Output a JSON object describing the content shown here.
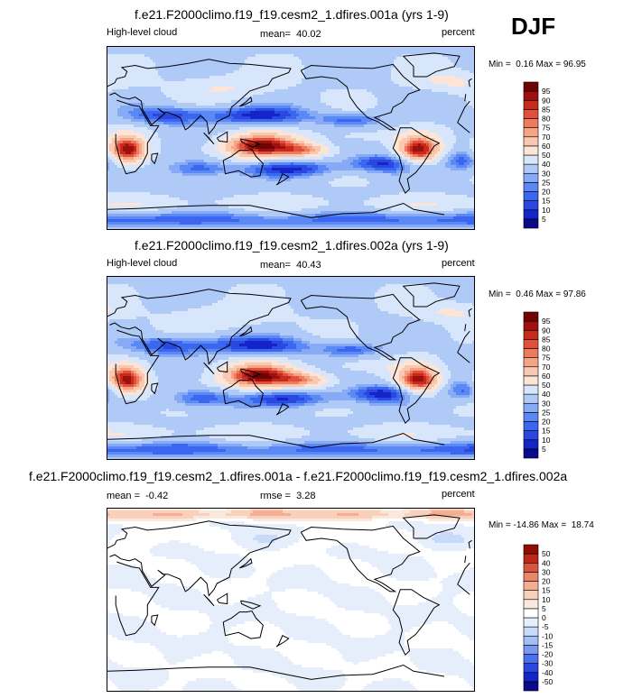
{
  "season": "DJF",
  "colors": {
    "abs_scale": [
      "#0a0a8a",
      "#1424c8",
      "#2a48e0",
      "#3a66f0",
      "#5a88f4",
      "#86aaf6",
      "#b0caf8",
      "#d8e6fb",
      "#fce4d6",
      "#f9c8b0",
      "#f6a486",
      "#ef7a5e",
      "#e0503a",
      "#c62a1c",
      "#9c1010",
      "#700404"
    ],
    "diff_scale": [
      "#0a0a8a",
      "#1424c8",
      "#2a48e0",
      "#4a70ee",
      "#7898f2",
      "#a4bef6",
      "#c8dafa",
      "#e6eefc",
      "#ffffff",
      "#fbe8dc",
      "#f8d0bc",
      "#f4ae94",
      "#ec866a",
      "#d85440",
      "#bc2818",
      "#900c04",
      "#6a0000"
    ],
    "coast": "#000000"
  },
  "chart_data": [
    {
      "type": "heatmap",
      "title": "f.e21.F2000climo.f19_f19.cesm2_1.dfires.001a (yrs 1-9)",
      "variable": "High-level cloud",
      "mean_label": "mean=",
      "mean": "40.02",
      "units": "percent",
      "min_label": "Min =",
      "min": "0.16",
      "max_label": "Max =",
      "max": "96.95",
      "levels": [
        5,
        10,
        15,
        20,
        25,
        30,
        40,
        50,
        60,
        70,
        75,
        80,
        85,
        90,
        95
      ],
      "field": "abs",
      "seed": 1
    },
    {
      "type": "heatmap",
      "title": "f.e21.F2000climo.f19_f19.cesm2_1.dfires.002a (yrs 1-9)",
      "variable": "High-level cloud",
      "mean_label": "mean=",
      "mean": "40.43",
      "units": "percent",
      "min_label": "Min =",
      "min": "0.46",
      "max_label": "Max =",
      "max": "97.86",
      "levels": [
        5,
        10,
        15,
        20,
        25,
        30,
        40,
        50,
        60,
        70,
        75,
        80,
        85,
        90,
        95
      ],
      "field": "abs",
      "seed": 2
    },
    {
      "type": "heatmap",
      "title": "f.e21.F2000climo.f19_f19.cesm2_1.dfires.001a - f.e21.F2000climo.f19_f19.cesm2_1.dfires.002a",
      "mean_label": "mean =",
      "mean": "-0.42",
      "rmse_label": "rmse =",
      "rmse": "3.28",
      "units": "percent",
      "min_label": "Min =",
      "min": "-14.86",
      "max_label": "Max =",
      "max": "18.74",
      "levels": [
        -50,
        -40,
        -30,
        -20,
        -15,
        -10,
        -5,
        0,
        5,
        10,
        15,
        20,
        30,
        40,
        50
      ],
      "field": "diff",
      "seed": 3
    }
  ]
}
